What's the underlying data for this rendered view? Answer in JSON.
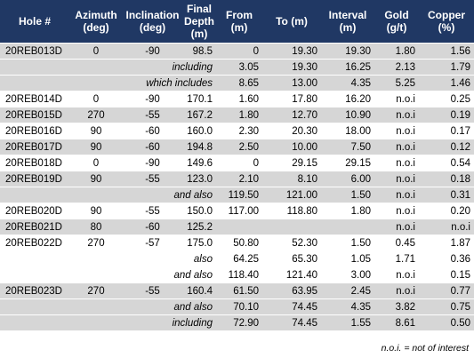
{
  "table": {
    "header": [
      "Hole #",
      "Azimuth (deg)",
      "Inclination (deg)",
      "Final Depth (m)",
      "From (m)",
      "To (m)",
      "Interval (m)",
      "Gold (g/t)",
      "Copper (%)"
    ],
    "rows": [
      [
        "20REB013D",
        "0",
        "-90",
        "98.5",
        "0",
        "19.30",
        "19.30",
        "1.80",
        "1.56"
      ],
      {
        "label": "including",
        "values": [
          "3.05",
          "19.30",
          "16.25",
          "2.13",
          "1.79"
        ]
      },
      {
        "label": "which includes",
        "values": [
          "8.65",
          "13.00",
          "4.35",
          "5.25",
          "1.46"
        ]
      },
      [
        "20REB014D",
        "0",
        "-90",
        "170.1",
        "1.60",
        "17.80",
        "16.20",
        "n.o.i",
        "0.25"
      ],
      [
        "20REB015D",
        "270",
        "-55",
        "167.2",
        "1.80",
        "12.70",
        "10.90",
        "n.o.i",
        "0.19"
      ],
      [
        "20REB016D",
        "90",
        "-60",
        "160.0",
        "2.30",
        "20.30",
        "18.00",
        "n.o.i",
        "0.17"
      ],
      [
        "20REB017D",
        "90",
        "-60",
        "194.8",
        "2.50",
        "10.00",
        "7.50",
        "n.o.i",
        "0.12"
      ],
      [
        "20REB018D",
        "0",
        "-90",
        "149.6",
        "0",
        "29.15",
        "29.15",
        "n.o.i",
        "0.54"
      ],
      [
        "20REB019D",
        "90",
        "-55",
        "123.0",
        "2.10",
        "8.10",
        "6.00",
        "n.o.i",
        "0.18"
      ],
      {
        "label": "and also",
        "values": [
          "119.50",
          "121.00",
          "1.50",
          "n.o.i",
          "0.31"
        ]
      },
      [
        "20REB020D",
        "90",
        "-55",
        "150.0",
        "117.00",
        "118.80",
        "1.80",
        "n.o.i",
        "0.20"
      ],
      [
        "20REB021D",
        "80",
        "-60",
        "125.2",
        null,
        null,
        null,
        "n.o.i",
        "n.o.i"
      ],
      [
        "20REB022D",
        "270",
        "-57",
        "175.0",
        "50.80",
        "52.30",
        "1.50",
        "0.45",
        "1.87"
      ],
      {
        "label": "also",
        "values": [
          "64.25",
          "65.30",
          "1.05",
          "1.71",
          "0.36"
        ]
      },
      {
        "label": "and also",
        "values": [
          "118.40",
          "121.40",
          "3.00",
          "n.o.i",
          "0.15"
        ]
      },
      [
        "20REB023D",
        "270",
        "-55",
        "160.4",
        "61.50",
        "63.95",
        "2.45",
        "n.o.i",
        "0.77"
      ],
      {
        "label": "and also",
        "values": [
          "70.10",
          "74.45",
          "4.35",
          "3.82",
          "0.75"
        ]
      },
      {
        "label": "including",
        "values": [
          "72.90",
          "74.45",
          "1.55",
          "8.61",
          "0.50"
        ]
      }
    ]
  },
  "footnote": "n.o.i. = not of interest"
}
